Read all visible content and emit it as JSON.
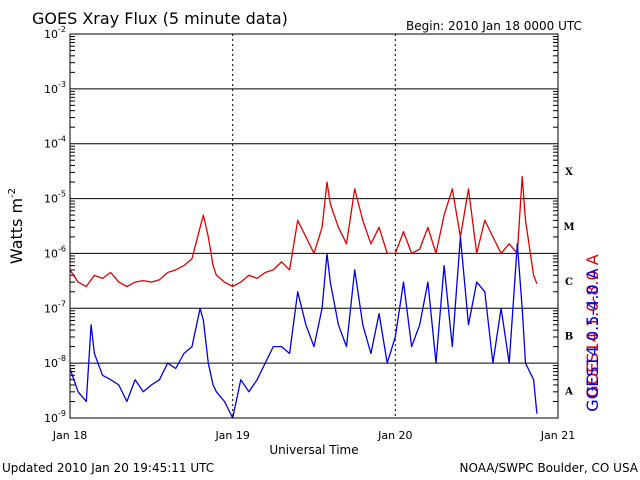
{
  "chart_data": {
    "type": "line",
    "title": "GOES Xray Flux (5 minute data)",
    "begin_label": "Begin:  2010 Jan 18 0000 UTC",
    "xlabel": "Universal Time",
    "ylabel": "Watts m",
    "ylabel_exp": "-2",
    "y_scale": "log",
    "ylim": [
      1e-09,
      0.01
    ],
    "xlim": [
      0,
      3
    ],
    "x_ticks": [
      {
        "x": 0,
        "label": "Jan 18"
      },
      {
        "x": 1,
        "label": "Jan 19"
      },
      {
        "x": 2,
        "label": "Jan 20"
      },
      {
        "x": 3,
        "label": "Jan 21"
      }
    ],
    "y_ticks": [
      {
        "exp": -9
      },
      {
        "exp": -8
      },
      {
        "exp": -7
      },
      {
        "exp": -6
      },
      {
        "exp": -5
      },
      {
        "exp": -4
      },
      {
        "exp": -3
      },
      {
        "exp": -2
      }
    ],
    "y_tick_base": "10",
    "flare_classes": [
      {
        "label": "X",
        "exp": -4
      },
      {
        "label": "M",
        "exp": -5
      },
      {
        "label": "C",
        "exp": -6
      },
      {
        "label": "B",
        "exp": -7
      },
      {
        "label": "A",
        "exp": -8
      }
    ],
    "grid": true,
    "series": [
      {
        "name": "GOES14 1.0-8.0 A",
        "color": "#e00000",
        "x": [
          0.0,
          0.05,
          0.1,
          0.15,
          0.2,
          0.25,
          0.3,
          0.35,
          0.4,
          0.45,
          0.5,
          0.55,
          0.6,
          0.65,
          0.7,
          0.75,
          0.8,
          0.82,
          0.85,
          0.88,
          0.9,
          0.95,
          1.0,
          1.05,
          1.1,
          1.15,
          1.2,
          1.25,
          1.3,
          1.35,
          1.4,
          1.45,
          1.5,
          1.55,
          1.58,
          1.6,
          1.65,
          1.7,
          1.75,
          1.8,
          1.85,
          1.9,
          1.95,
          2.0,
          2.05,
          2.1,
          2.15,
          2.2,
          2.25,
          2.3,
          2.35,
          2.4,
          2.45,
          2.5,
          2.55,
          2.6,
          2.65,
          2.7,
          2.75,
          2.78,
          2.8,
          2.85,
          2.87
        ],
        "y": [
          5e-07,
          3e-07,
          2.5e-07,
          4e-07,
          3.5e-07,
          4.5e-07,
          3e-07,
          2.5e-07,
          3e-07,
          3.2e-07,
          3e-07,
          3.3e-07,
          4.5e-07,
          5e-07,
          6e-07,
          8e-07,
          3e-06,
          5e-06,
          2e-06,
          6e-07,
          4e-07,
          3e-07,
          2.5e-07,
          3e-07,
          4e-07,
          3.5e-07,
          4.5e-07,
          5e-07,
          7e-07,
          5e-07,
          4e-06,
          2e-06,
          1e-06,
          3e-06,
          2e-05,
          8e-06,
          3e-06,
          1.5e-06,
          1.5e-05,
          4e-06,
          1.5e-06,
          3e-06,
          1e-06,
          1e-06,
          2.5e-06,
          1e-06,
          1.2e-06,
          3e-06,
          1e-06,
          5e-06,
          1.5e-05,
          2e-06,
          1.5e-05,
          1e-06,
          4e-06,
          2e-06,
          1e-06,
          1.5e-06,
          1e-06,
          2.5e-05,
          4e-06,
          4e-07,
          2.8e-07
        ]
      },
      {
        "name": "GOES14 0.5-4.0 A",
        "color": "#0000e0",
        "x": [
          0.0,
          0.05,
          0.1,
          0.13,
          0.15,
          0.2,
          0.25,
          0.3,
          0.35,
          0.4,
          0.45,
          0.5,
          0.55,
          0.6,
          0.65,
          0.7,
          0.75,
          0.8,
          0.82,
          0.85,
          0.88,
          0.9,
          0.95,
          1.0,
          1.05,
          1.1,
          1.15,
          1.2,
          1.25,
          1.3,
          1.35,
          1.4,
          1.45,
          1.5,
          1.55,
          1.58,
          1.6,
          1.65,
          1.7,
          1.75,
          1.8,
          1.85,
          1.9,
          1.95,
          2.0,
          2.05,
          2.1,
          2.15,
          2.2,
          2.25,
          2.3,
          2.35,
          2.4,
          2.45,
          2.5,
          2.55,
          2.6,
          2.65,
          2.7,
          2.75,
          2.78,
          2.8,
          2.85,
          2.87
        ],
        "y": [
          8e-09,
          3e-09,
          2e-09,
          5e-08,
          1.5e-08,
          6e-09,
          5e-09,
          4e-09,
          2e-09,
          5e-09,
          3e-09,
          4e-09,
          5e-09,
          1e-08,
          8e-09,
          1.5e-08,
          2e-08,
          1e-07,
          6e-08,
          1e-08,
          4e-09,
          3e-09,
          2e-09,
          1e-09,
          5e-09,
          3e-09,
          5e-09,
          1e-08,
          2e-08,
          2e-08,
          1.5e-08,
          2e-07,
          5e-08,
          2e-08,
          1e-07,
          1e-06,
          3e-07,
          5e-08,
          2e-08,
          5e-07,
          5e-08,
          1.5e-08,
          8e-08,
          1e-08,
          3e-08,
          3e-07,
          2e-08,
          5e-08,
          3e-07,
          1e-08,
          6e-07,
          2e-08,
          2e-06,
          5e-08,
          3e-07,
          2e-07,
          1e-08,
          1e-07,
          1e-08,
          1.5e-06,
          1e-07,
          1e-08,
          5e-09,
          1.2e-09
        ]
      }
    ]
  },
  "footer": {
    "updated": "Updated 2010 Jan 20 19:45:11 UTC",
    "source": "NOAA/SWPC Boulder, CO USA"
  }
}
